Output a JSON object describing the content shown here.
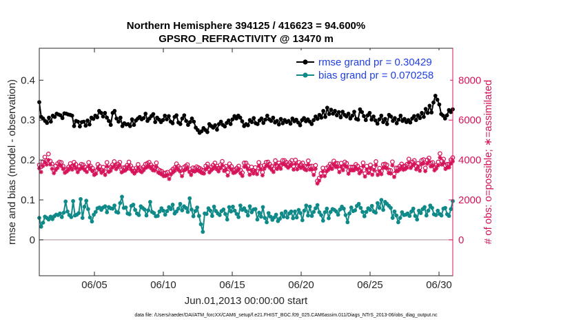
{
  "chart_data": {
    "type": "line",
    "title_line1": "Northern Hemisphere 394125 / 416623 = 94.600%",
    "title_line2": "GPSRO_REFRACTIVITY @ 13470 m",
    "ylabel": "rmse and bias (model - observation)",
    "ylabel_right": "# of obs: o=possible; ∗=assimilated",
    "xlabel": "Jun.01,2013 00:00:00 start",
    "footnote": "data file: /Users/raeder/DAI/ATM_forcXX/CAM6_setup/f.e21.FHIST_BGC.f09_025.CAM6assim.011/Diags_NTrS_2013-06/obs_diag_output.nc",
    "xlim": [
      1,
      31
    ],
    "ylim": [
      -0.09,
      0.48
    ],
    "ylim_right": [
      -1800,
      9600
    ],
    "x_ticks": [
      5,
      10,
      15,
      20,
      25,
      30
    ],
    "x_tick_labels": [
      "06/05",
      "06/10",
      "06/15",
      "06/20",
      "06/25",
      "06/30"
    ],
    "y_ticks": [
      0,
      0.1,
      0.2,
      0.3,
      0.4
    ],
    "y_tick_labels": [
      "0",
      "0.1",
      "0.2",
      "0.3",
      "0.4"
    ],
    "y_right_ticks": [
      0,
      2000,
      4000,
      6000,
      8000
    ],
    "y_right_tick_labels": [
      "0",
      "2000",
      "4000",
      "6000",
      "8000"
    ],
    "legend_position": "top-right",
    "colors": {
      "rmse": "#000000",
      "bias": "#0f8a88",
      "obs": "#d6135a",
      "axis": "#262626"
    },
    "series": [
      {
        "name": "rmse grand pr = 0.30429",
        "key": "rmse",
        "values": [
          0.345,
          0.308,
          0.304,
          0.298,
          0.293,
          0.306,
          0.296,
          0.311,
          0.308,
          0.316,
          0.314,
          0.312,
          0.305,
          0.317,
          0.316,
          0.314,
          0.313,
          0.311,
          0.285,
          0.298,
          0.296,
          0.284,
          0.295,
          0.296,
          0.286,
          0.299,
          0.289,
          0.306,
          0.303,
          0.311,
          0.307,
          0.323,
          0.318,
          0.309,
          0.318,
          0.306,
          0.298,
          0.288,
          0.318,
          0.323,
          0.304,
          0.296,
          0.306,
          0.285,
          0.292,
          0.289,
          0.29,
          0.285,
          0.302,
          0.288,
          0.299,
          0.304,
          0.308,
          0.302,
          0.305,
          0.316,
          0.298,
          0.304,
          0.31,
          0.315,
          0.295,
          0.306,
          0.301,
          0.295,
          0.3,
          0.311,
          0.302,
          0.31,
          0.296,
          0.292,
          0.308,
          0.312,
          0.294,
          0.29,
          0.304,
          0.312,
          0.298,
          0.288,
          0.295,
          0.304,
          0.296,
          0.281,
          0.275,
          0.268,
          0.272,
          0.28,
          0.275,
          0.27,
          0.29,
          0.285,
          0.281,
          0.287,
          0.276,
          0.29,
          0.296,
          0.288,
          0.284,
          0.293,
          0.299,
          0.29,
          0.302,
          0.31,
          0.304,
          0.311,
          0.306,
          0.297,
          0.285,
          0.29,
          0.287,
          0.3,
          0.295,
          0.305,
          0.292,
          0.29,
          0.299,
          0.304,
          0.293,
          0.301,
          0.311,
          0.302,
          0.298,
          0.306,
          0.294,
          0.298,
          0.289,
          0.303,
          0.292,
          0.3,
          0.295,
          0.298,
          0.291,
          0.304,
          0.297,
          0.301,
          0.294,
          0.287,
          0.3,
          0.305,
          0.297,
          0.302,
          0.296,
          0.29,
          0.3,
          0.309,
          0.303,
          0.313,
          0.306,
          0.323,
          0.308,
          0.331,
          0.315,
          0.326,
          0.316,
          0.323,
          0.312,
          0.32,
          0.307,
          0.321,
          0.313,
          0.309,
          0.316,
          0.304,
          0.311,
          0.321,
          0.303,
          0.301,
          0.327,
          0.32,
          0.31,
          0.3,
          0.312,
          0.318,
          0.301,
          0.309,
          0.299,
          0.291,
          0.302,
          0.311,
          0.295,
          0.303,
          0.29,
          0.313,
          0.309,
          0.298,
          0.305,
          0.292,
          0.301,
          0.311,
          0.298,
          0.303,
          0.295,
          0.3,
          0.294,
          0.304,
          0.31,
          0.3,
          0.312,
          0.305,
          0.318,
          0.308,
          0.328,
          0.318,
          0.336,
          0.319,
          0.344,
          0.361,
          0.351,
          0.339,
          0.315,
          0.311,
          0.304,
          0.312,
          0.325,
          0.32,
          0.327
        ]
      },
      {
        "name": "bias grand pr = 0.070258",
        "key": "bias",
        "values": [
          0.055,
          0.033,
          0.043,
          0.058,
          0.055,
          0.051,
          0.058,
          0.052,
          0.059,
          0.063,
          0.062,
          0.066,
          0.057,
          0.068,
          0.096,
          0.071,
          0.062,
          0.057,
          0.097,
          0.061,
          0.063,
          0.067,
          0.102,
          0.055,
          0.083,
          0.098,
          0.077,
          0.056,
          0.046,
          0.063,
          0.07,
          0.079,
          0.081,
          0.075,
          0.081,
          0.084,
          0.069,
          0.082,
          0.079,
          0.078,
          0.086,
          0.07,
          0.068,
          0.092,
          0.108,
          0.08,
          0.081,
          0.066,
          0.064,
          0.085,
          0.088,
          0.075,
          0.066,
          0.062,
          0.084,
          0.08,
          0.076,
          0.061,
          0.074,
          0.095,
          0.07,
          0.067,
          0.059,
          0.06,
          0.071,
          0.079,
          0.073,
          0.063,
          0.072,
          0.082,
          0.077,
          0.088,
          0.066,
          0.071,
          0.078,
          0.09,
          0.074,
          0.084,
          0.08,
          0.07,
          0.104,
          0.076,
          0.059,
          0.072,
          0.081,
          0.06,
          0.039,
          0.02,
          0.066,
          0.065,
          0.079,
          0.073,
          0.06,
          0.083,
          0.072,
          0.066,
          0.062,
          0.072,
          0.076,
          0.065,
          0.051,
          0.082,
          0.071,
          0.083,
          0.073,
          0.065,
          0.057,
          0.086,
          0.075,
          0.079,
          0.072,
          0.061,
          0.084,
          0.069,
          0.076,
          0.077,
          0.051,
          0.068,
          0.058,
          0.082,
          0.055,
          0.044,
          0.067,
          0.058,
          0.05,
          0.056,
          0.063,
          0.047,
          0.053,
          0.066,
          0.058,
          0.071,
          0.056,
          0.066,
          0.071,
          0.054,
          0.071,
          0.056,
          0.075,
          0.067,
          0.049,
          0.073,
          0.086,
          0.061,
          0.083,
          0.06,
          0.07,
          0.079,
          0.087,
          0.069,
          0.062,
          0.048,
          0.069,
          0.078,
          0.054,
          0.07,
          0.077,
          0.075,
          0.071,
          0.063,
          0.076,
          0.083,
          0.078,
          0.062,
          0.044,
          0.066,
          0.081,
          0.072,
          0.074,
          0.085,
          0.09,
          0.08,
          0.07,
          0.059,
          0.07,
          0.079,
          0.075,
          0.085,
          0.071,
          0.068,
          0.092,
          0.08,
          0.1,
          0.075,
          0.095,
          0.09,
          0.085,
          0.08,
          0.055,
          0.071,
          0.061,
          0.044,
          0.055,
          0.069,
          0.062,
          0.063,
          0.066,
          0.06,
          0.071,
          0.078,
          0.06,
          0.051,
          0.073,
          0.067,
          0.077,
          0.082,
          0.061,
          0.073,
          0.086,
          0.08,
          0.064,
          0.062,
          0.073,
          0.065,
          0.061,
          0.078,
          0.08,
          0.064,
          0.06,
          0.077,
          0.097
        ]
      },
      {
        "name": "possible",
        "key": "obs_possible",
        "values": [
          3750,
          3660,
          3900,
          4150,
          3970,
          4300,
          3950,
          3800,
          3480,
          3700,
          3820,
          3900,
          3880,
          3700,
          3500,
          3550,
          3650,
          3820,
          3700,
          3890,
          3780,
          3520,
          3690,
          3790,
          3760,
          3650,
          3540,
          3880,
          3700,
          3600,
          3420,
          3460,
          3780,
          3680,
          3500,
          3640,
          3420,
          3880,
          3580,
          3650,
          3760,
          3920,
          3720,
          3800,
          3890,
          3520,
          3610,
          3630,
          3730,
          3900,
          3710,
          3580,
          3460,
          3600,
          3780,
          3610,
          3550,
          3650,
          3790,
          3830,
          3890,
          3760,
          3660,
          3630,
          3860,
          3520,
          3480,
          3430,
          3340,
          3350,
          3390,
          3180,
          3450,
          3540,
          3620,
          3810,
          3680,
          3600,
          3330,
          3630,
          3700,
          3770,
          3560,
          3400,
          3610,
          3580,
          3660,
          3620,
          3570,
          3500,
          3480,
          3700,
          3800,
          3540,
          3650,
          3740,
          3850,
          3700,
          3590,
          3760,
          3930,
          3620,
          3690,
          3380,
          3810,
          3680,
          3500,
          3530,
          3600,
          3700,
          3490,
          3360,
          3850,
          3850,
          3710,
          3420,
          3650,
          3480,
          3620,
          3440,
          3880,
          3700,
          3380,
          3730,
          3890,
          3900,
          3790,
          3680,
          3560,
          3970,
          3720,
          3850,
          3740,
          3980,
          3980,
          3890,
          3790,
          3870,
          3980,
          3690,
          4000,
          3700,
          3880,
          3780,
          3850,
          3700,
          3660,
          3960,
          3690,
          3700,
          3400,
          3730,
          2950,
          3100,
          3330,
          3600,
          3340,
          3600,
          3670,
          3800,
          3730,
          3950,
          3830,
          3830,
          3550,
          3840,
          3660,
          3900,
          3830,
          3460,
          3650,
          3650,
          3650,
          3780,
          3700,
          3490,
          3590,
          3860,
          3320,
          3690,
          3500,
          3750,
          3410,
          3660,
          3920,
          3400,
          3590,
          3440,
          3780,
          3800,
          3750,
          3500,
          3480,
          3910,
          3300,
          3600,
          3600,
          3690,
          3800,
          3680,
          3710,
          3790,
          4050,
          3780,
          3900,
          3980,
          3700,
          3830,
          3620,
          3980,
          4020,
          3600,
          4000,
          4100,
          3860,
          3880,
          3650,
          3740,
          3900,
          4320,
          3950,
          4050,
          3720,
          3790,
          3800,
          4010,
          4120
        ]
      },
      {
        "name": "assimilated",
        "key": "obs_assimilated",
        "values": [
          3580,
          3400,
          3700,
          3900,
          3770,
          4000,
          3780,
          3560,
          3340,
          3500,
          3600,
          3760,
          3700,
          3550,
          3360,
          3420,
          3500,
          3630,
          3520,
          3720,
          3580,
          3390,
          3530,
          3600,
          3570,
          3480,
          3400,
          3690,
          3540,
          3440,
          3250,
          3310,
          3600,
          3510,
          3360,
          3450,
          3250,
          3680,
          3400,
          3460,
          3620,
          3710,
          3540,
          3640,
          3730,
          3380,
          3440,
          3470,
          3550,
          3700,
          3530,
          3410,
          3320,
          3430,
          3600,
          3450,
          3390,
          3480,
          3600,
          3640,
          3700,
          3590,
          3490,
          3470,
          3670,
          3370,
          3320,
          3270,
          3190,
          3200,
          3240,
          3050,
          3280,
          3370,
          3450,
          3620,
          3500,
          3430,
          3190,
          3470,
          3520,
          3580,
          3400,
          3250,
          3440,
          3420,
          3490,
          3460,
          3400,
          3340,
          3320,
          3530,
          3620,
          3380,
          3480,
          3560,
          3670,
          3530,
          3430,
          3580,
          3730,
          3450,
          3520,
          3220,
          3620,
          3510,
          3350,
          3370,
          3440,
          3530,
          3330,
          3200,
          3660,
          3660,
          3530,
          3260,
          3480,
          3320,
          3460,
          3290,
          3700,
          3530,
          3230,
          3560,
          3700,
          3710,
          3610,
          3510,
          3400,
          3780,
          3550,
          3680,
          3560,
          3790,
          3780,
          3700,
          3610,
          3690,
          3780,
          3520,
          3800,
          3530,
          3690,
          3600,
          3670,
          3530,
          3490,
          3770,
          3520,
          3530,
          3250,
          3560,
          2820,
          2960,
          3180,
          3430,
          3190,
          3430,
          3500,
          3620,
          3550,
          3760,
          3650,
          3650,
          3390,
          3660,
          3490,
          3720,
          3650,
          3310,
          3480,
          3480,
          3480,
          3600,
          3530,
          3330,
          3430,
          3680,
          3170,
          3520,
          3340,
          3580,
          3260,
          3490,
          3740,
          3250,
          3430,
          3290,
          3610,
          3620,
          3580,
          3340,
          3320,
          3730,
          3150,
          3440,
          3440,
          3520,
          3620,
          3510,
          3540,
          3610,
          3860,
          3600,
          3720,
          3790,
          3530,
          3650,
          3460,
          3790,
          3830,
          3440,
          3810,
          3910,
          3680,
          3700,
          3480,
          3570,
          3720,
          4120,
          3770,
          3860,
          3550,
          3620,
          3630,
          3820,
          3930
        ]
      }
    ]
  }
}
